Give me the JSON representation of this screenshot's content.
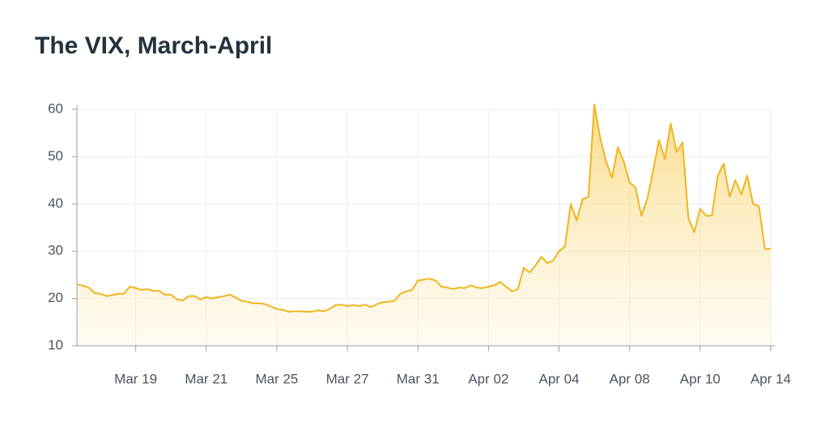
{
  "chart_data": {
    "type": "area",
    "title": "The VIX, March-April",
    "color": "#f0b51d",
    "values": [
      23,
      22.7,
      22.3,
      21.2,
      21,
      20.5,
      20.7,
      21,
      21,
      22.5,
      22.2,
      21.8,
      22,
      21.6,
      21.6,
      20.8,
      20.8,
      19.8,
      19.6,
      20.5,
      20.5,
      19.8,
      20.3,
      20,
      20.3,
      20.5,
      20.8,
      20.2,
      19.5,
      19.3,
      19,
      19,
      18.8,
      18.3,
      17.8,
      17.6,
      17.2,
      17.3,
      17.3,
      17.2,
      17.2,
      17.5,
      17.3,
      17.8,
      18.6,
      18.7,
      18.4,
      18.6,
      18.4,
      18.7,
      18.2,
      18.8,
      19.2,
      19.3,
      19.5,
      21,
      21.5,
      21.8,
      23.8,
      24,
      24.2,
      23.8,
      22.5,
      22.3,
      22,
      22.3,
      22.2,
      22.8,
      22.3,
      22.2,
      22.5,
      22.8,
      23.5,
      22.5,
      21.5,
      22,
      26.5,
      25.5,
      27,
      28.8,
      27.5,
      28,
      30,
      31,
      40,
      36.5,
      41,
      41.5,
      61,
      54,
      49,
      45.5,
      52,
      49,
      44.5,
      43.5,
      37.5,
      41,
      47,
      53.5,
      49.5,
      57,
      51,
      53,
      37,
      34,
      39,
      37.5,
      37.5,
      46,
      48.5,
      41.5,
      45,
      42,
      46,
      40,
      39.5,
      30.5,
      30.5
    ],
    "xlim": [
      0,
      118
    ],
    "xticks": [
      {
        "value": 10,
        "label": "Mar 19"
      },
      {
        "value": 22,
        "label": "Mar 21"
      },
      {
        "value": 34,
        "label": "Mar 25"
      },
      {
        "value": 46,
        "label": "Mar 27"
      },
      {
        "value": 58,
        "label": "Mar 31"
      },
      {
        "value": 70,
        "label": "Apr 02"
      },
      {
        "value": 82,
        "label": "Apr 04"
      },
      {
        "value": 94,
        "label": "Apr 08"
      },
      {
        "value": 106,
        "label": "Apr 10"
      },
      {
        "value": 118,
        "label": "Apr 14"
      }
    ],
    "ylim": [
      10,
      60
    ],
    "yticks": [
      10,
      20,
      30,
      40,
      50,
      60
    ],
    "grid": true
  }
}
